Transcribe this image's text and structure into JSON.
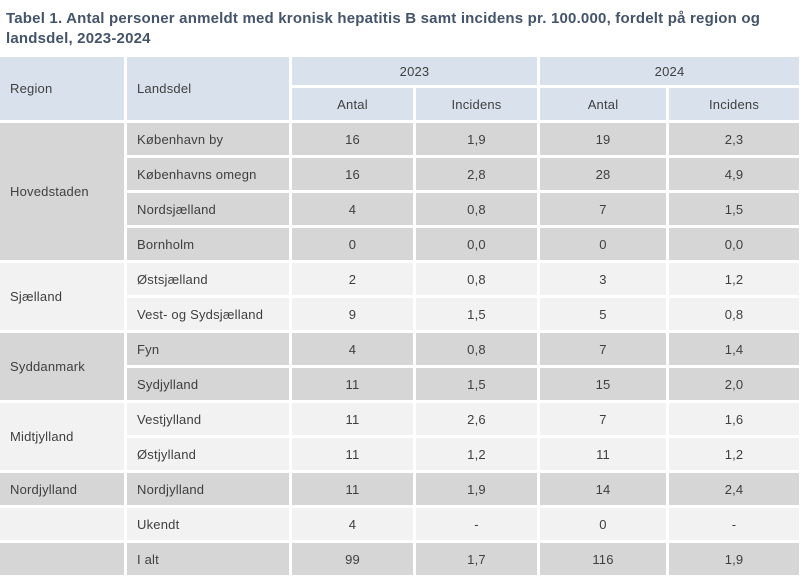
{
  "title": "Tabel 1. Antal personer anmeldt med kronisk hepatitis B samt incidens pr. 100.000, fordelt på region og landsdel, 2023-2024",
  "colors": {
    "title_text": "#44546a",
    "header_bg": "#d9e2ec",
    "row_gray_bg": "#d6d6d6",
    "row_light_bg": "#f2f2f2",
    "cell_text": "#3f3f3f",
    "gap": "#ffffff"
  },
  "table": {
    "col_headers": {
      "region": "Region",
      "landsdel": "Landsdel",
      "years": [
        "2023",
        "2024"
      ],
      "antal": "Antal",
      "incidens": "Incidens"
    },
    "rows": [
      {
        "region": "Hovedstaden",
        "landsdel": "København by",
        "antal_2023": "16",
        "incidens_2023": "1,9",
        "antal_2024": "19",
        "incidens_2024": "2,3"
      },
      {
        "landsdel": "Københavns omegn",
        "antal_2023": "16",
        "incidens_2023": "2,8",
        "antal_2024": "28",
        "incidens_2024": "4,9"
      },
      {
        "landsdel": "Nordsjælland",
        "antal_2023": "4",
        "incidens_2023": "0,8",
        "antal_2024": "7",
        "incidens_2024": "1,5"
      },
      {
        "landsdel": "Bornholm",
        "antal_2023": "0",
        "incidens_2023": "0,0",
        "antal_2024": "0",
        "incidens_2024": "0,0"
      },
      {
        "region": "Sjælland",
        "landsdel": "Østsjælland",
        "antal_2023": "2",
        "incidens_2023": "0,8",
        "antal_2024": "3",
        "incidens_2024": "1,2"
      },
      {
        "landsdel": "Vest- og Sydsjælland",
        "antal_2023": "9",
        "incidens_2023": "1,5",
        "antal_2024": "5",
        "incidens_2024": "0,8"
      },
      {
        "region": "Syddanmark",
        "landsdel": "Fyn",
        "antal_2023": "4",
        "incidens_2023": "0,8",
        "antal_2024": "7",
        "incidens_2024": "1,4"
      },
      {
        "landsdel": "Sydjylland",
        "antal_2023": "11",
        "incidens_2023": "1,5",
        "antal_2024": "15",
        "incidens_2024": "2,0"
      },
      {
        "region": "Midtjylland",
        "landsdel": "Vestjylland",
        "antal_2023": "11",
        "incidens_2023": "2,6",
        "antal_2024": "7",
        "incidens_2024": "1,6"
      },
      {
        "landsdel": "Østjylland",
        "antal_2023": "11",
        "incidens_2023": "1,2",
        "antal_2024": "11",
        "incidens_2024": "1,2"
      },
      {
        "region": "Nordjylland",
        "landsdel": "Nordjylland",
        "antal_2023": "11",
        "incidens_2023": "1,9",
        "antal_2024": "14",
        "incidens_2024": "2,4"
      },
      {
        "region": "",
        "landsdel": "Ukendt",
        "antal_2023": "4",
        "incidens_2023": "-",
        "antal_2024": "0",
        "incidens_2024": "-"
      },
      {
        "region": "",
        "landsdel": "I alt",
        "antal_2023": "99",
        "incidens_2023": "1,7",
        "antal_2024": "116",
        "incidens_2024": "1,9"
      }
    ]
  }
}
